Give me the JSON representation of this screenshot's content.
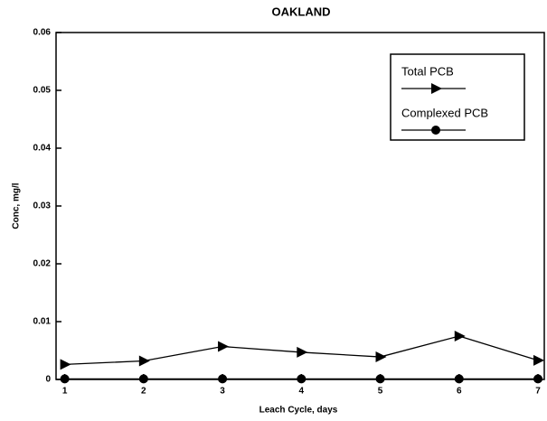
{
  "chart_data": {
    "type": "line",
    "title": "OAKLAND",
    "xlabel": "Leach Cycle, days",
    "ylabel": "Conc, mg/l",
    "x": [
      1,
      2,
      3,
      4,
      5,
      6,
      7
    ],
    "series": [
      {
        "name": "Total PCB",
        "color": "#000000",
        "marker": "triangle",
        "values": [
          0.0026,
          0.0032,
          0.0057,
          0.0047,
          0.0039,
          0.0075,
          0.0033
        ]
      },
      {
        "name": "Complexed PCB",
        "color": "#000000",
        "marker": "circle",
        "values": [
          0.0001,
          0.0001,
          0.0001,
          0.0001,
          0.0001,
          0.0001,
          0.0001
        ]
      }
    ],
    "xlim": [
      0.89,
      7.08
    ],
    "xticks": [
      1,
      2,
      3,
      4,
      5,
      6,
      7
    ],
    "ylim": [
      0,
      0.06
    ],
    "yticks": [
      0,
      0.01,
      0.02,
      0.03,
      0.04,
      0.05,
      0.06
    ],
    "legend": "upper right"
  }
}
